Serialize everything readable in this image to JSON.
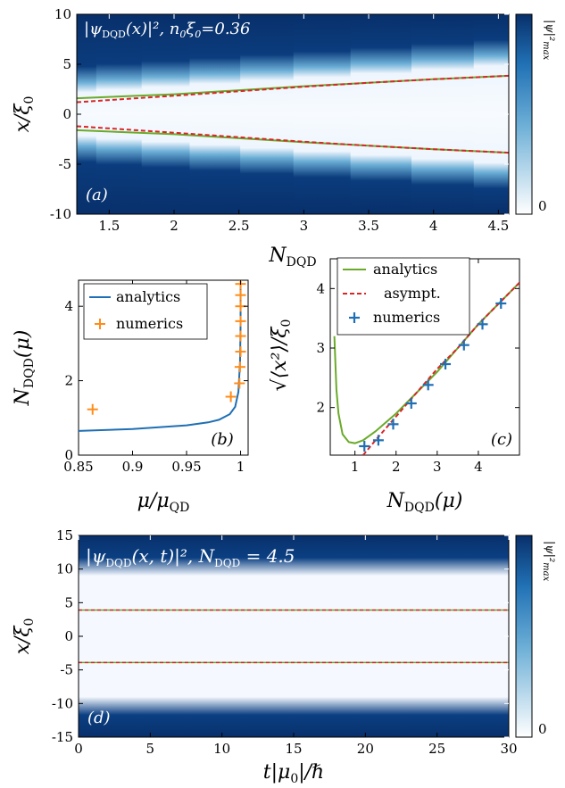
{
  "chart_data": [
    {
      "panel": "(a)",
      "type": "heatmap",
      "title": "|ψDQD(x)|², n₀ξ₀=0.36",
      "xlabel": "NDQD",
      "ylabel": "x/ξ₀",
      "xlim": [
        1.25,
        4.58
      ],
      "ylim": [
        -10,
        10
      ],
      "xticks": [
        "1.5",
        "2",
        "2.5",
        "3",
        "3.5",
        "4",
        "4.5"
      ],
      "yticks": [
        "-10",
        "-5",
        "0",
        "5",
        "10"
      ],
      "colorbar": {
        "label": "|ψ|²max",
        "ticks": [
          "0"
        ]
      },
      "bin_centers": [
        1.23,
        1.57,
        1.93,
        2.31,
        2.71,
        3.13,
        3.59,
        4.07,
        4.55
      ],
      "series": [
        {
          "name": "analytics",
          "color": "#6aaa2a",
          "style": "solid",
          "x": [
            1.25,
            2.0,
            2.5,
            3.0,
            3.5,
            4.0,
            4.58
          ],
          "y_upper": [
            1.6,
            2.0,
            2.4,
            2.8,
            3.15,
            3.5,
            3.85
          ]
        },
        {
          "name": "asympt.",
          "color": "#d62728",
          "style": "dashed",
          "x": [
            1.25,
            2.0,
            2.5,
            3.0,
            3.5,
            4.0,
            4.58
          ],
          "y_upper": [
            1.2,
            1.85,
            2.3,
            2.75,
            3.15,
            3.5,
            3.85
          ]
        }
      ]
    },
    {
      "panel": "(b)",
      "type": "line",
      "xlabel": "μ/μQD",
      "ylabel": "NDQD(μ)",
      "xlim": [
        0.85,
        1.007
      ],
      "ylim": [
        0,
        4.7
      ],
      "xticks": [
        "0.85",
        "0.9",
        "0.95",
        "1"
      ],
      "yticks": [
        "0",
        "2",
        "4"
      ],
      "legend": [
        "analytics",
        "numerics"
      ],
      "series": [
        {
          "name": "analytics",
          "color": "#1f6fb4",
          "x": [
            0.85,
            0.9,
            0.95,
            0.97,
            0.98,
            0.99,
            0.995,
            0.998,
            0.9995,
            1.0,
            1.0
          ],
          "y": [
            0.65,
            0.7,
            0.8,
            0.88,
            0.95,
            1.1,
            1.3,
            1.7,
            2.5,
            3.5,
            4.7
          ]
        },
        {
          "name": "numerics",
          "color": "#ff8c1a",
          "marker": "+",
          "x": [
            0.863,
            0.991,
            0.999,
            0.9995,
            1.0,
            1.0,
            1.0,
            1.0,
            1.0,
            1.0
          ],
          "y": [
            1.23,
            1.57,
            1.93,
            2.37,
            2.78,
            3.2,
            3.6,
            4.0,
            4.3,
            4.6
          ]
        }
      ]
    },
    {
      "panel": "(c)",
      "type": "line",
      "xlabel": "NDQD(μ)",
      "ylabel": "√⟨x²⟩/ξ₀",
      "xlim": [
        0.4,
        5
      ],
      "ylim": [
        1.2,
        4.5
      ],
      "xticks": [
        "1",
        "2",
        "3",
        "4"
      ],
      "yticks": [
        "2",
        "3",
        "4"
      ],
      "legend": [
        "analytics",
        "asympt.",
        "numerics"
      ],
      "series": [
        {
          "name": "analytics",
          "color": "#6aaa2a",
          "x": [
            0.5,
            0.55,
            0.6,
            0.7,
            0.85,
            1.0,
            1.2,
            1.5,
            2.0,
            2.5,
            3.0,
            3.5,
            4.0,
            4.5,
            5.0
          ],
          "y": [
            3.2,
            2.3,
            1.9,
            1.55,
            1.42,
            1.4,
            1.45,
            1.6,
            1.9,
            2.25,
            2.6,
            3.0,
            3.4,
            3.75,
            4.1
          ]
        },
        {
          "name": "asympt.",
          "color": "#d62728",
          "x": [
            1.2,
            1.5,
            2.0,
            2.5,
            3.0,
            3.5,
            4.0,
            4.5,
            5.0
          ],
          "y": [
            1.2,
            1.45,
            1.85,
            2.25,
            2.65,
            3.0,
            3.4,
            3.75,
            4.1
          ]
        },
        {
          "name": "numerics",
          "color": "#1f6fb4",
          "marker": "+",
          "x": [
            1.23,
            1.57,
            1.93,
            2.37,
            2.78,
            3.2,
            3.65,
            4.1,
            4.55
          ],
          "y": [
            1.35,
            1.45,
            1.72,
            2.07,
            2.38,
            2.73,
            3.05,
            3.4,
            3.75
          ]
        }
      ]
    },
    {
      "panel": "(d)",
      "type": "heatmap",
      "title": "|ψDQD(x,t)|², NDQD = 4.5",
      "xlabel": "t|μ₀|/ℏ",
      "ylabel": "x/ξ₀",
      "xlim": [
        0,
        30
      ],
      "ylim": [
        -15,
        15
      ],
      "xticks": [
        "0",
        "5",
        "10",
        "15",
        "20",
        "25",
        "30"
      ],
      "yticks": [
        "-15",
        "-10",
        "-5",
        "0",
        "5",
        "10",
        "15"
      ],
      "colorbar": {
        "label": "|ψ|²max",
        "ticks": [
          "0"
        ]
      },
      "lines_at": [
        3.9,
        -3.9
      ]
    }
  ],
  "colors": {
    "dark": "#08306b",
    "mid": "#2171b5",
    "light": "#f5f9ff",
    "green": "#6aaa2a",
    "red": "#d62728",
    "blue": "#1f6fb4",
    "orange": "#ff8c1a"
  }
}
